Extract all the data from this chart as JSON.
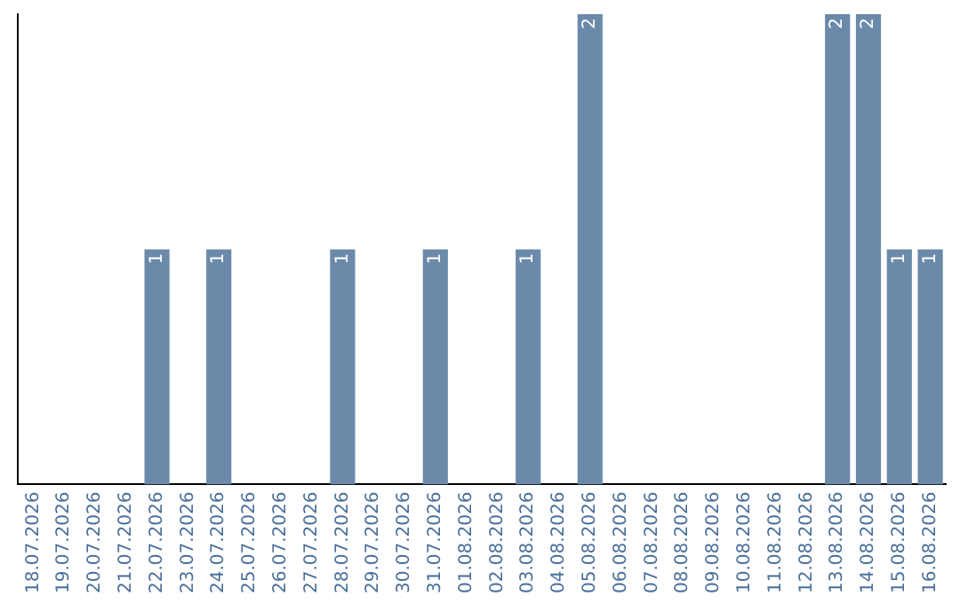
{
  "chart_data": {
    "type": "bar",
    "categories": [
      "18.07.2026",
      "19.07.2026",
      "20.07.2026",
      "21.07.2026",
      "22.07.2026",
      "23.07.2026",
      "24.07.2026",
      "25.07.2026",
      "26.07.2026",
      "27.07.2026",
      "28.07.2026",
      "29.07.2026",
      "30.07.2026",
      "31.07.2026",
      "01.08.2026",
      "02.08.2026",
      "03.08.2026",
      "04.08.2026",
      "05.08.2026",
      "06.08.2026",
      "07.08.2026",
      "08.08.2026",
      "09.08.2026",
      "10.08.2026",
      "11.08.2026",
      "12.08.2026",
      "13.08.2026",
      "14.08.2026",
      "15.08.2026",
      "16.08.2026"
    ],
    "values": [
      null,
      null,
      null,
      null,
      1,
      null,
      1,
      null,
      null,
      null,
      1,
      null,
      null,
      1,
      null,
      null,
      1,
      null,
      2,
      null,
      null,
      null,
      null,
      null,
      null,
      null,
      2,
      2,
      1,
      1
    ],
    "color": "#6b8aaa",
    "data_labels": true,
    "grid": false,
    "legend": false,
    "tick_labels": "x"
  }
}
